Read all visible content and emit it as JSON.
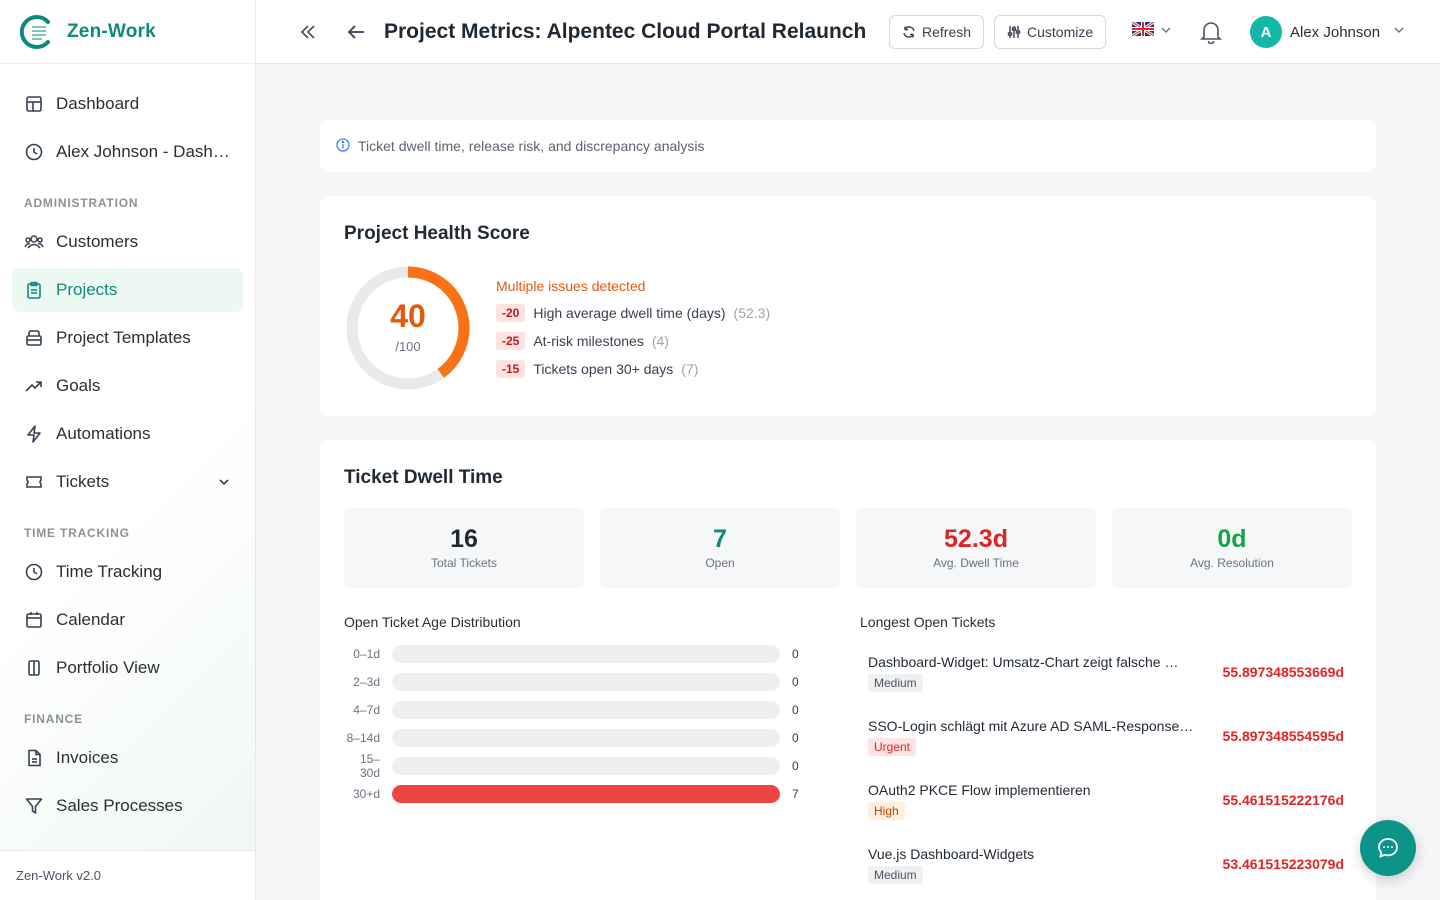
{
  "app": {
    "name": "Zen-Work",
    "version": "Zen-Work v2.0"
  },
  "sidebar": {
    "items": [
      {
        "label": "Dashboard"
      },
      {
        "label": "Alex Johnson - Dashb…"
      }
    ],
    "sections": [
      {
        "title": "ADMINISTRATION",
        "items": [
          {
            "label": "Customers"
          },
          {
            "label": "Projects",
            "active": true
          },
          {
            "label": "Project Templates"
          },
          {
            "label": "Goals"
          },
          {
            "label": "Automations"
          },
          {
            "label": "Tickets"
          }
        ]
      },
      {
        "title": "TIME TRACKING",
        "items": [
          {
            "label": "Time Tracking"
          },
          {
            "label": "Calendar"
          },
          {
            "label": "Portfolio View"
          }
        ]
      },
      {
        "title": "FINANCE",
        "items": [
          {
            "label": "Invoices"
          },
          {
            "label": "Sales Processes"
          }
        ]
      }
    ]
  },
  "header": {
    "title": "Project Metrics: Alpentec Cloud Portal Relaunch",
    "refresh_label": "Refresh",
    "customize_label": "Customize",
    "user_initial": "A",
    "user_name": "Alex Johnson"
  },
  "info": {
    "text": "Ticket dwell time, release risk, and discrepancy analysis"
  },
  "health": {
    "title": "Project Health Score",
    "score": "40",
    "score_max": "/100",
    "score_fraction": 0.4,
    "issues_heading": "Multiple issues detected",
    "issues": [
      {
        "penalty": "-20",
        "label": "High average dwell time (days)",
        "value": "(52.3)"
      },
      {
        "penalty": "-25",
        "label": "At-risk milestones",
        "value": "(4)"
      },
      {
        "penalty": "-15",
        "label": "Tickets open 30+ days",
        "value": "(7)"
      }
    ]
  },
  "dwell": {
    "title": "Ticket Dwell Time",
    "stats": [
      {
        "value": "16",
        "label": "Total Tickets",
        "color": "#1f2933"
      },
      {
        "value": "7",
        "label": "Open",
        "color": "#0d8a7c"
      },
      {
        "value": "52.3d",
        "label": "Avg. Dwell Time",
        "color": "#dc2626"
      },
      {
        "value": "0d",
        "label": "Avg. Resolution",
        "color": "#16a34a"
      }
    ],
    "distribution_title": "Open Ticket Age Distribution",
    "distribution": [
      {
        "range": "0–1d",
        "count": 0
      },
      {
        "range": "2–3d",
        "count": 0
      },
      {
        "range": "4–7d",
        "count": 0
      },
      {
        "range": "8–14d",
        "count": 0
      },
      {
        "range": "15–30d",
        "count": 0
      },
      {
        "range": "30+d",
        "count": 7
      }
    ],
    "longest_title": "Longest Open Tickets",
    "longest": [
      {
        "title": "Dashboard-Widget: Umsatz-Chart zeigt falsche …",
        "priority": "Medium",
        "age": "55.897348553669d"
      },
      {
        "title": "SSO-Login schlägt mit Azure AD SAML-Response…",
        "priority": "Urgent",
        "age": "55.897348554595d"
      },
      {
        "title": "OAuth2 PKCE Flow implementieren",
        "priority": "High",
        "age": "55.461515222176d"
      },
      {
        "title": "Vue.js Dashboard-Widgets",
        "priority": "Medium",
        "age": "53.461515223079d"
      }
    ]
  }
}
